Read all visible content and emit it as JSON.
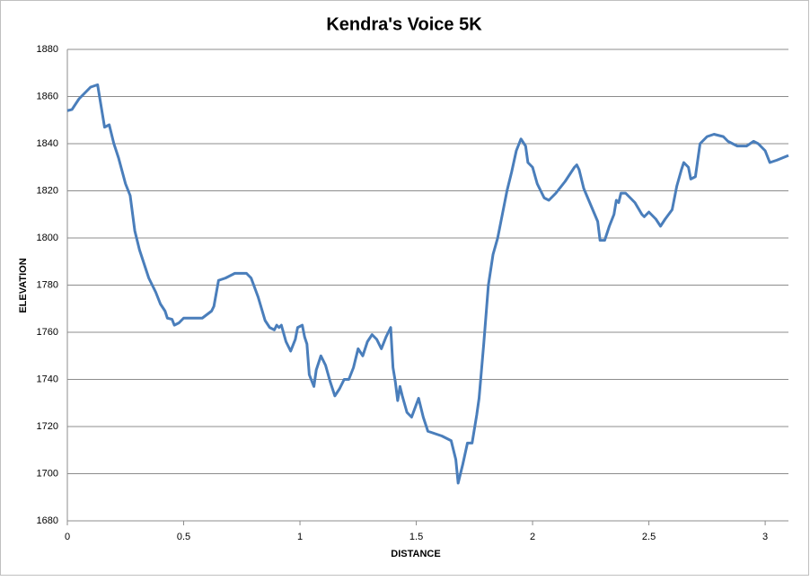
{
  "chart_data": {
    "type": "line",
    "title": "Kendra's Voice 5K",
    "x_label": "DISTANCE",
    "y_label": "ELEVATION",
    "x": [
      0,
      0.02,
      0.05,
      0.08,
      0.1,
      0.13,
      0.16,
      0.18,
      0.2,
      0.22,
      0.25,
      0.27,
      0.29,
      0.31,
      0.33,
      0.35,
      0.38,
      0.4,
      0.42,
      0.43,
      0.45,
      0.46,
      0.48,
      0.5,
      0.55,
      0.58,
      0.62,
      0.63,
      0.65,
      0.68,
      0.72,
      0.77,
      0.79,
      0.82,
      0.85,
      0.87,
      0.89,
      0.9,
      0.91,
      0.92,
      0.94,
      0.96,
      0.98,
      0.99,
      1.01,
      1.02,
      1.03,
      1.04,
      1.06,
      1.07,
      1.09,
      1.11,
      1.13,
      1.15,
      1.17,
      1.19,
      1.21,
      1.23,
      1.25,
      1.27,
      1.29,
      1.31,
      1.33,
      1.35,
      1.37,
      1.39,
      1.4,
      1.41,
      1.42,
      1.43,
      1.44,
      1.46,
      1.48,
      1.51,
      1.53,
      1.55,
      1.58,
      1.61,
      1.63,
      1.65,
      1.67,
      1.68,
      1.7,
      1.72,
      1.74,
      1.76,
      1.77,
      1.79,
      1.81,
      1.83,
      1.85,
      1.87,
      1.89,
      1.91,
      1.93,
      1.95,
      1.97,
      1.98,
      2.0,
      2.02,
      2.05,
      2.07,
      2.1,
      2.14,
      2.16,
      2.18,
      2.19,
      2.2,
      2.22,
      2.25,
      2.28,
      2.29,
      2.31,
      2.33,
      2.35,
      2.36,
      2.37,
      2.38,
      2.4,
      2.44,
      2.47,
      2.48,
      2.5,
      2.53,
      2.55,
      2.57,
      2.6,
      2.62,
      2.64,
      2.65,
      2.67,
      2.68,
      2.7,
      2.72,
      2.75,
      2.78,
      2.82,
      2.84,
      2.88,
      2.92,
      2.95,
      2.97,
      3.0,
      3.02,
      3.05,
      3.1
    ],
    "series": [
      {
        "name": "Elevation",
        "color": "#4a7ebb",
        "values": [
          1854,
          1854.5,
          1859,
          1862,
          1864,
          1865,
          1847,
          1848,
          1840,
          1834,
          1823,
          1818,
          1803,
          1795,
          1789,
          1783,
          1777,
          1772,
          1769,
          1766,
          1765.5,
          1763,
          1764,
          1766,
          1766,
          1766,
          1769,
          1771,
          1782,
          1783,
          1785,
          1785,
          1783,
          1775,
          1765,
          1762,
          1761,
          1763,
          1762,
          1763,
          1756,
          1752,
          1757,
          1762,
          1763,
          1758,
          1755,
          1742,
          1737,
          1744,
          1750,
          1746,
          1739,
          1733,
          1736,
          1740,
          1740,
          1745,
          1753,
          1750,
          1756,
          1759,
          1757,
          1753,
          1758,
          1762,
          1745,
          1739,
          1731,
          1737,
          1733,
          1726,
          1724,
          1732,
          1724,
          1718,
          1717,
          1716,
          1715,
          1714,
          1706,
          1696,
          1704,
          1713,
          1713,
          1725,
          1732,
          1755,
          1780,
          1793,
          1800,
          1810,
          1820,
          1828,
          1837,
          1842,
          1839,
          1832,
          1830,
          1823,
          1817,
          1816,
          1819,
          1824,
          1827,
          1830,
          1831,
          1829,
          1821,
          1814,
          1807,
          1799,
          1799,
          1805,
          1810,
          1816,
          1815,
          1819,
          1819,
          1815,
          1810,
          1809,
          1811,
          1808,
          1805,
          1808,
          1812,
          1822,
          1829,
          1832,
          1830,
          1825,
          1826,
          1840,
          1843,
          1844,
          1843,
          1841,
          1839,
          1839,
          1841,
          1840,
          1837,
          1832,
          1833,
          1835
        ]
      }
    ],
    "xlim": [
      0,
      3.1
    ],
    "xticks": [
      0,
      0.5,
      1,
      1.5,
      2,
      2.5,
      3
    ],
    "ylim": [
      1680,
      1880
    ],
    "yticks": [
      1680,
      1700,
      1720,
      1740,
      1760,
      1780,
      1800,
      1820,
      1840,
      1860,
      1880
    ],
    "grid": true
  }
}
